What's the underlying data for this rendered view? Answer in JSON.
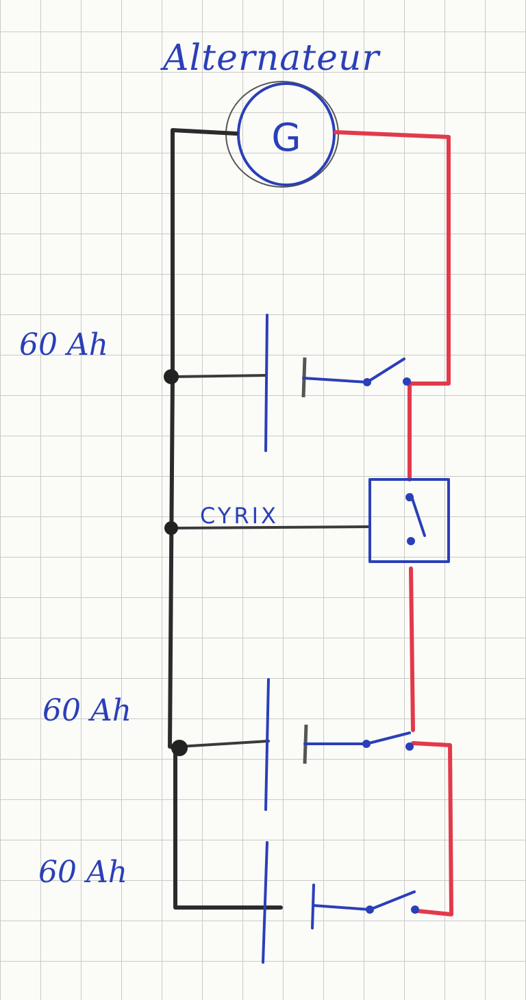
{
  "diagram": {
    "title": "Alternateur",
    "generator_symbol": "G",
    "batteries": [
      {
        "label": "60 Ah"
      },
      {
        "label": "60 Ah"
      },
      {
        "label": "60 Ah"
      }
    ],
    "relay_label": "CYRIX",
    "colors": {
      "positive_wire": "#e23a4b",
      "negative_wire": "#2b2b2b",
      "ink": "#2a3fb8",
      "grid": "#c9c9c9"
    }
  }
}
